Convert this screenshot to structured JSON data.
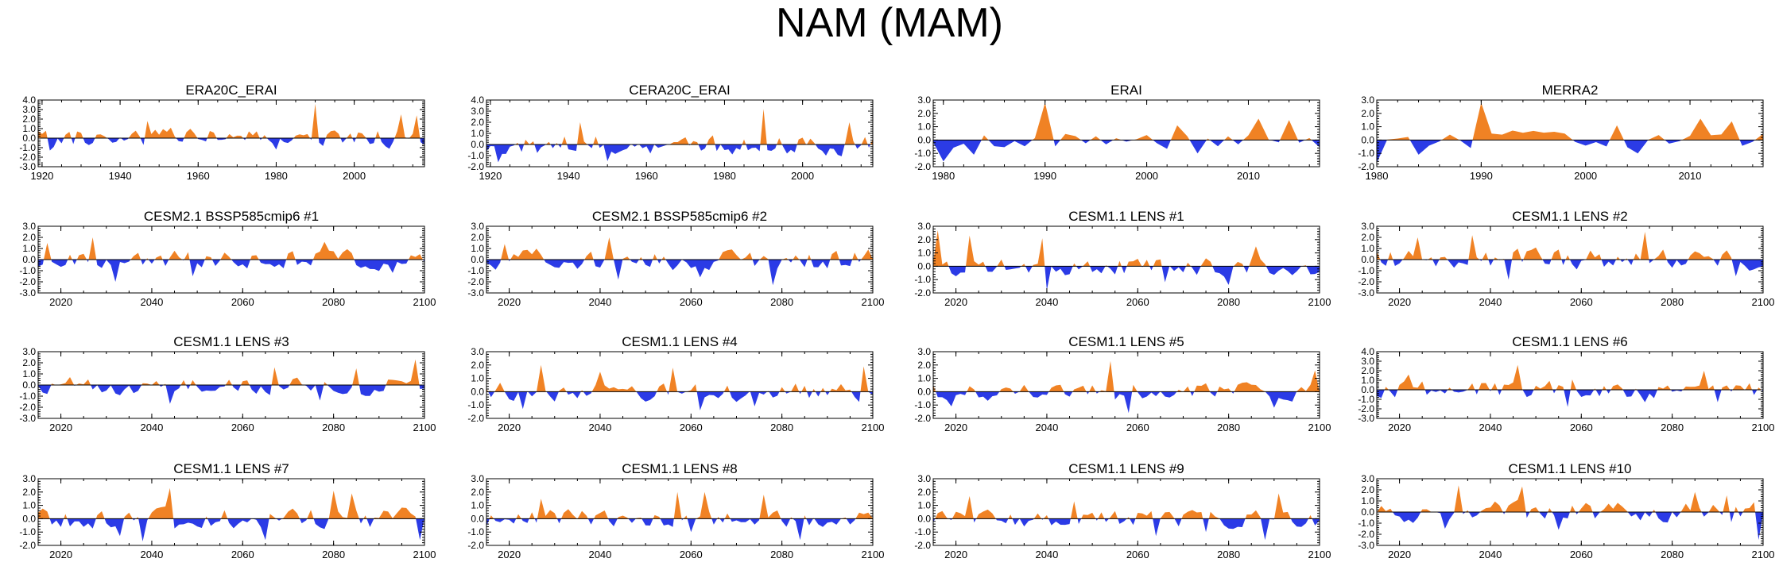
{
  "figure": {
    "title": "NAM (MAM)"
  },
  "colors": {
    "positive": "#f08224",
    "negative": "#2b3be6",
    "axis": "#000000"
  },
  "chart_data": [
    {
      "type": "area",
      "title": "ERA20C_ERAI",
      "x_range": [
        1919,
        2018
      ],
      "xticks": [
        1920,
        1940,
        1960,
        1980,
        2000
      ],
      "ylim": [
        -3.0,
        4.0
      ],
      "yticks": [
        -3.0,
        -2.0,
        -1.0,
        0.0,
        1.0,
        2.0,
        3.0,
        4.0
      ],
      "yticklabels": [
        "-3.0",
        "-2.0",
        "-1.0",
        "0.0",
        "1.0",
        "2.0",
        "3.0",
        "4.0"
      ],
      "seed": 11,
      "amp": 0.9,
      "sp": [
        [
          1990,
          3.6
        ],
        [
          2012,
          2.5
        ],
        [
          2016,
          2.4
        ],
        [
          1947,
          1.8
        ]
      ],
      "sn": [
        [
          1980,
          -1.2
        ],
        [
          1922,
          -1.3
        ]
      ]
    },
    {
      "type": "area",
      "title": "CERA20C_ERAI",
      "x_range": [
        1919,
        2018
      ],
      "xticks": [
        1920,
        1940,
        1960,
        1980,
        2000
      ],
      "ylim": [
        -2.0,
        4.0
      ],
      "yticks": [
        -2.0,
        -1.0,
        0.0,
        1.0,
        2.0,
        3.0,
        4.0
      ],
      "yticklabels": [
        "-2.0",
        "-1.0",
        "0.0",
        "1.0",
        "2.0",
        "3.0",
        "4.0"
      ],
      "seed": 12,
      "amp": 0.85,
      "sp": [
        [
          1990,
          3.2
        ],
        [
          2012,
          2.0
        ],
        [
          1943,
          2.0
        ]
      ],
      "sn": [
        [
          1922,
          -1.6
        ],
        [
          1950,
          -1.5
        ]
      ]
    },
    {
      "type": "area",
      "title": "ERAI",
      "x_range": [
        1979,
        2017
      ],
      "xticks": [
        1980,
        1990,
        2000,
        2010
      ],
      "ylim": [
        -2.0,
        3.0
      ],
      "yticks": [
        -2.0,
        -1.0,
        0.0,
        1.0,
        2.0,
        3.0
      ],
      "yticklabels": [
        "-2.0",
        "-1.0",
        "0.0",
        "1.0",
        "2.0",
        "3.0"
      ],
      "seed": 13,
      "amp": 0.6,
      "sp": [
        [
          1990,
          2.8
        ],
        [
          2011,
          1.6
        ],
        [
          2014,
          1.5
        ],
        [
          2003,
          1.1
        ]
      ],
      "sn": [
        [
          1980,
          -1.6
        ],
        [
          1983,
          -1.1
        ],
        [
          2005,
          -1.0
        ]
      ]
    },
    {
      "type": "area",
      "title": "MERRA2",
      "x_range": [
        1980,
        2017
      ],
      "xticks": [
        1980,
        1990,
        2000,
        2010
      ],
      "ylim": [
        -2.0,
        3.0
      ],
      "yticks": [
        -2.0,
        -1.0,
        0.0,
        1.0,
        2.0,
        3.0
      ],
      "yticklabels": [
        "-2.0",
        "-1.0",
        "0.0",
        "1.0",
        "2.0",
        "3.0"
      ],
      "seed": 14,
      "amp": 0.6,
      "sp": [
        [
          1990,
          2.8
        ],
        [
          2011,
          1.6
        ],
        [
          2014,
          1.4
        ],
        [
          2003,
          1.1
        ]
      ],
      "sn": [
        [
          1980,
          -1.7
        ],
        [
          1984,
          -1.1
        ],
        [
          2005,
          -1.0
        ]
      ]
    },
    {
      "type": "area",
      "title": "CESM2.1 BSSP585cmip6 #1",
      "x_range": [
        2015,
        2100
      ],
      "xticks": [
        2020,
        2040,
        2060,
        2080,
        2100
      ],
      "ylim": [
        -3.0,
        3.0
      ],
      "yticks": [
        -3.0,
        -2.0,
        -1.0,
        0.0,
        1.0,
        2.0,
        3.0
      ],
      "yticklabels": [
        "-3.0",
        "-2.0",
        "-1.0",
        "0.0",
        "1.0",
        "2.0",
        "3.0"
      ],
      "seed": 21,
      "amp": 0.8,
      "sp": [
        [
          2027,
          2.0
        ],
        [
          2078,
          1.6
        ],
        [
          2017,
          1.5
        ]
      ],
      "sn": [
        [
          2032,
          -2.0
        ],
        [
          2049,
          -1.5
        ],
        [
          2093,
          -1.2
        ]
      ]
    },
    {
      "type": "area",
      "title": "CESM2.1 BSSP585cmip6 #2",
      "x_range": [
        2015,
        2100
      ],
      "xticks": [
        2020,
        2040,
        2060,
        2080,
        2100
      ],
      "ylim": [
        -3.0,
        3.0
      ],
      "yticks": [
        -3.0,
        -2.0,
        -1.0,
        0.0,
        1.0,
        2.0,
        3.0
      ],
      "yticklabels": [
        "-3.0",
        "-2.0",
        "-1.0",
        "0.0",
        "1.0",
        "2.0",
        "3.0"
      ],
      "seed": 22,
      "amp": 0.85,
      "sp": [
        [
          2042,
          2.0
        ],
        [
          2019,
          1.4
        ]
      ],
      "sn": [
        [
          2078,
          -2.3
        ],
        [
          2044,
          -1.8
        ],
        [
          2062,
          -1.6
        ]
      ]
    },
    {
      "type": "area",
      "title": "CESM1.1 LENS #1",
      "x_range": [
        2015,
        2100
      ],
      "xticks": [
        2020,
        2040,
        2060,
        2080,
        2100
      ],
      "ylim": [
        -2.0,
        3.0
      ],
      "yticks": [
        -2.0,
        -1.0,
        0.0,
        1.0,
        2.0,
        3.0
      ],
      "yticklabels": [
        "-2.0",
        "-1.0",
        "0.0",
        "1.0",
        "2.0",
        "3.0"
      ],
      "seed": 23,
      "amp": 0.65,
      "sp": [
        [
          2016,
          2.7
        ],
        [
          2023,
          2.3
        ],
        [
          2039,
          2.1
        ],
        [
          2086,
          1.5
        ]
      ],
      "sn": [
        [
          2040,
          -1.8
        ],
        [
          2066,
          -1.2
        ],
        [
          2080,
          -1.4
        ]
      ]
    },
    {
      "type": "area",
      "title": "CESM1.1 LENS #2",
      "x_range": [
        2015,
        2100
      ],
      "xticks": [
        2020,
        2040,
        2060,
        2080,
        2100
      ],
      "ylim": [
        -3.0,
        3.0
      ],
      "yticks": [
        -3.0,
        -2.0,
        -1.0,
        0.0,
        1.0,
        2.0,
        3.0
      ],
      "yticklabels": [
        "-3.0",
        "-2.0",
        "-1.0",
        "0.0",
        "1.0",
        "2.0",
        "3.0"
      ],
      "seed": 24,
      "amp": 0.85,
      "sp": [
        [
          2074,
          2.5
        ],
        [
          2036,
          2.2
        ],
        [
          2024,
          2.0
        ]
      ],
      "sn": [
        [
          2044,
          -1.8
        ],
        [
          2094,
          -1.5
        ]
      ]
    },
    {
      "type": "area",
      "title": "CESM1.1 LENS #3",
      "x_range": [
        2015,
        2100
      ],
      "xticks": [
        2020,
        2040,
        2060,
        2080,
        2100
      ],
      "ylim": [
        -3.0,
        3.0
      ],
      "yticks": [
        -3.0,
        -2.0,
        -1.0,
        0.0,
        1.0,
        2.0,
        3.0
      ],
      "yticklabels": [
        "-3.0",
        "-2.0",
        "-1.0",
        "0.0",
        "1.0",
        "2.0",
        "3.0"
      ],
      "seed": 31,
      "amp": 0.75,
      "sp": [
        [
          2098,
          2.3
        ],
        [
          2067,
          1.6
        ],
        [
          2085,
          1.5
        ]
      ],
      "sn": [
        [
          2044,
          -1.7
        ],
        [
          2077,
          -1.4
        ]
      ]
    },
    {
      "type": "area",
      "title": "CESM1.1 LENS #4",
      "x_range": [
        2015,
        2100
      ],
      "xticks": [
        2020,
        2040,
        2060,
        2080,
        2100
      ],
      "ylim": [
        -2.0,
        3.0
      ],
      "yticks": [
        -2.0,
        -1.0,
        0.0,
        1.0,
        2.0,
        3.0
      ],
      "yticklabels": [
        "-2.0",
        "-1.0",
        "0.0",
        "1.0",
        "2.0",
        "3.0"
      ],
      "seed": 32,
      "amp": 0.65,
      "sp": [
        [
          2027,
          2.0
        ],
        [
          2056,
          1.8
        ],
        [
          2098,
          1.9
        ],
        [
          2040,
          1.5
        ]
      ],
      "sn": [
        [
          2023,
          -1.3
        ],
        [
          2062,
          -1.4
        ],
        [
          2074,
          -1.1
        ]
      ]
    },
    {
      "type": "area",
      "title": "CESM1.1 LENS #5",
      "x_range": [
        2015,
        2100
      ],
      "xticks": [
        2020,
        2040,
        2060,
        2080,
        2100
      ],
      "ylim": [
        -2.0,
        3.0
      ],
      "yticks": [
        -2.0,
        -1.0,
        0.0,
        1.0,
        2.0,
        3.0
      ],
      "yticklabels": [
        "-2.0",
        "-1.0",
        "0.0",
        "1.0",
        "2.0",
        "3.0"
      ],
      "seed": 33,
      "amp": 0.6,
      "sp": [
        [
          2054,
          2.3
        ],
        [
          2099,
          1.6
        ]
      ],
      "sn": [
        [
          2058,
          -1.6
        ],
        [
          2090,
          -1.2
        ],
        [
          2019,
          -1.1
        ]
      ]
    },
    {
      "type": "area",
      "title": "CESM1.1 LENS #6",
      "x_range": [
        2015,
        2100
      ],
      "xticks": [
        2020,
        2040,
        2060,
        2080,
        2100
      ],
      "ylim": [
        -3.0,
        4.0
      ],
      "yticks": [
        -3.0,
        -2.0,
        -1.0,
        0.0,
        1.0,
        2.0,
        3.0,
        4.0
      ],
      "yticklabels": [
        "-3.0",
        "-2.0",
        "-1.0",
        "0.0",
        "1.0",
        "2.0",
        "3.0",
        "4.0"
      ],
      "seed": 34,
      "amp": 0.85,
      "sp": [
        [
          2046,
          2.6
        ],
        [
          2087,
          2.0
        ],
        [
          2022,
          1.6
        ]
      ],
      "sn": [
        [
          2057,
          -1.8
        ],
        [
          2074,
          -1.3
        ],
        [
          2090,
          -1.3
        ]
      ]
    },
    {
      "type": "area",
      "title": "CESM1.1 LENS #7",
      "x_range": [
        2015,
        2100
      ],
      "xticks": [
        2020,
        2040,
        2060,
        2080,
        2100
      ],
      "ylim": [
        -2.0,
        3.0
      ],
      "yticks": [
        -2.0,
        -1.0,
        0.0,
        1.0,
        2.0,
        3.0
      ],
      "yticklabels": [
        "-2.0",
        "-1.0",
        "0.0",
        "1.0",
        "2.0",
        "3.0"
      ],
      "seed": 41,
      "amp": 0.7,
      "sp": [
        [
          2044,
          2.3
        ],
        [
          2080,
          2.1
        ],
        [
          2084,
          1.9
        ]
      ],
      "sn": [
        [
          2038,
          -1.7
        ],
        [
          2065,
          -1.6
        ],
        [
          2099,
          -1.6
        ],
        [
          2033,
          -1.3
        ]
      ]
    },
    {
      "type": "area",
      "title": "CESM1.1 LENS #8",
      "x_range": [
        2015,
        2100
      ],
      "xticks": [
        2020,
        2040,
        2060,
        2080,
        2100
      ],
      "ylim": [
        -2.0,
        3.0
      ],
      "yticks": [
        -2.0,
        -1.0,
        0.0,
        1.0,
        2.0,
        3.0
      ],
      "yticklabels": [
        "-2.0",
        "-1.0",
        "0.0",
        "1.0",
        "2.0",
        "3.0"
      ],
      "seed": 42,
      "amp": 0.6,
      "sp": [
        [
          2057,
          2.0
        ],
        [
          2063,
          2.0
        ],
        [
          2076,
          1.8
        ],
        [
          2027,
          1.5
        ]
      ],
      "sn": [
        [
          2084,
          -1.6
        ],
        [
          2060,
          -1.0
        ]
      ]
    },
    {
      "type": "area",
      "title": "CESM1.1 LENS #9",
      "x_range": [
        2015,
        2100
      ],
      "xticks": [
        2020,
        2040,
        2060,
        2080,
        2100
      ],
      "ylim": [
        -2.0,
        3.0
      ],
      "yticks": [
        -2.0,
        -1.0,
        0.0,
        1.0,
        2.0,
        3.0
      ],
      "yticklabels": [
        "-2.0",
        "-1.0",
        "0.0",
        "1.0",
        "2.0",
        "3.0"
      ],
      "seed": 43,
      "amp": 0.6,
      "sp": [
        [
          2091,
          1.9
        ],
        [
          2023,
          1.7
        ],
        [
          2046,
          1.3
        ]
      ],
      "sn": [
        [
          2088,
          -1.6
        ],
        [
          2064,
          -1.3
        ],
        [
          2075,
          -1.0
        ]
      ]
    },
    {
      "type": "area",
      "title": "CESM1.1 LENS #10",
      "x_range": [
        2015,
        2100
      ],
      "xticks": [
        2020,
        2040,
        2060,
        2080,
        2100
      ],
      "ylim": [
        -3.0,
        3.0
      ],
      "yticks": [
        -3.0,
        -2.0,
        -1.0,
        0.0,
        1.0,
        2.0,
        3.0
      ],
      "yticklabels": [
        "-3.0",
        "-2.0",
        "-1.0",
        "0.0",
        "1.0",
        "2.0",
        "3.0"
      ],
      "seed": 44,
      "amp": 0.85,
      "sp": [
        [
          2033,
          2.4
        ],
        [
          2047,
          2.3
        ],
        [
          2085,
          1.8
        ],
        [
          2092,
          1.5
        ]
      ],
      "sn": [
        [
          2099,
          -2.5
        ],
        [
          2030,
          -1.5
        ],
        [
          2055,
          -1.6
        ]
      ]
    }
  ]
}
